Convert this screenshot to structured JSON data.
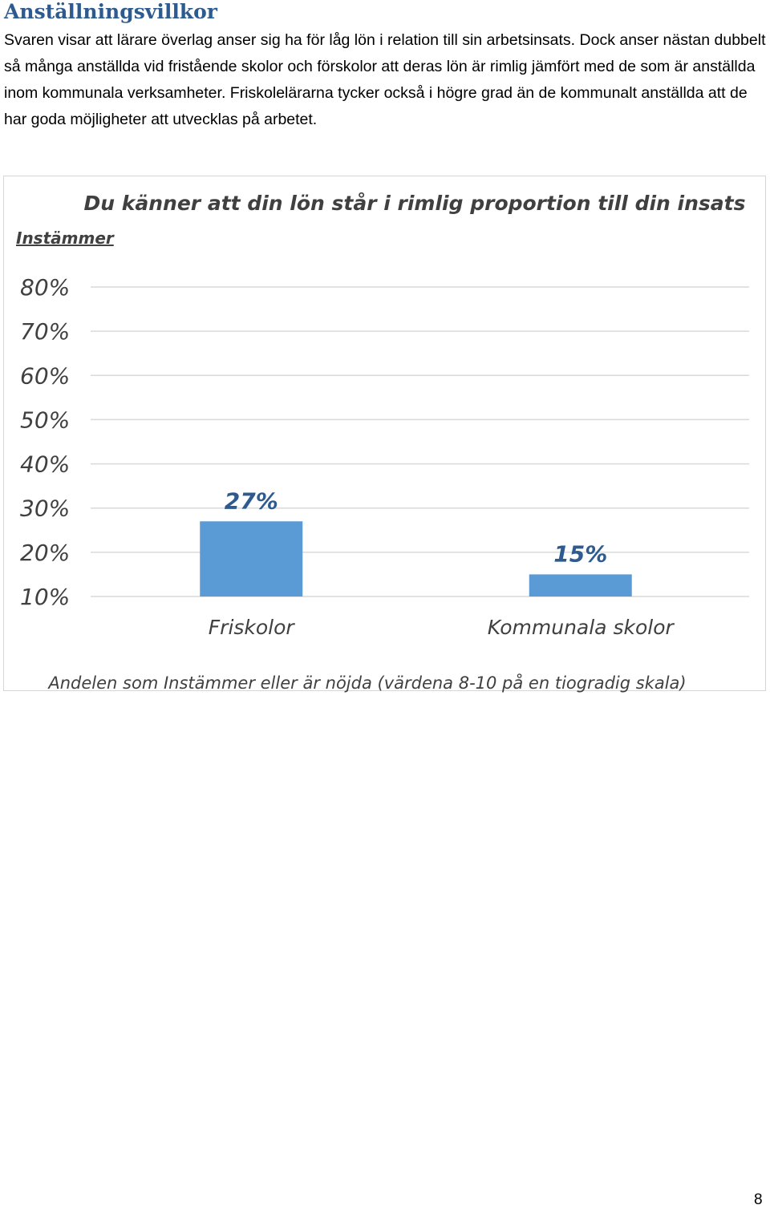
{
  "section": {
    "heading": "Anställningsvillkor",
    "paragraph": "Svaren visar att lärare överlag anser sig ha för låg lön i relation till sin arbetsinsats. Dock anser nästan dubbelt så många anställda vid fristående skolor och förskolor att deras lön är rimlig jämfört med de som är anställda inom kommunala verksamheter. Friskolelärarna tycker också i högre grad än de kommunalt anställda att de har goda möjligheter att utvecklas på arbetet."
  },
  "chart_data": {
    "type": "bar",
    "title": "Du känner att din lön står i rimlig proportion till din insats",
    "ylabel": "Instämmer",
    "xlabel": "Andelen som Instämmer eller är nöjda (värdena 8-10 på en tiogradig skala)",
    "categories": [
      "Friskolor",
      "Kommunala skolor"
    ],
    "values": [
      27,
      15
    ],
    "data_labels": [
      "27%",
      "15%"
    ],
    "yticks": [
      80,
      70,
      60,
      50,
      40,
      30,
      20,
      10
    ],
    "ytick_labels": [
      "80%",
      "70%",
      "60%",
      "50%",
      "40%",
      "30%",
      "20%",
      "10%"
    ],
    "ylim": [
      10,
      80
    ],
    "grid": true,
    "legend": "none",
    "bar_color": "#5b9bd5",
    "label_color": "#2e5b8f"
  },
  "footer": {
    "page_number": "8"
  }
}
